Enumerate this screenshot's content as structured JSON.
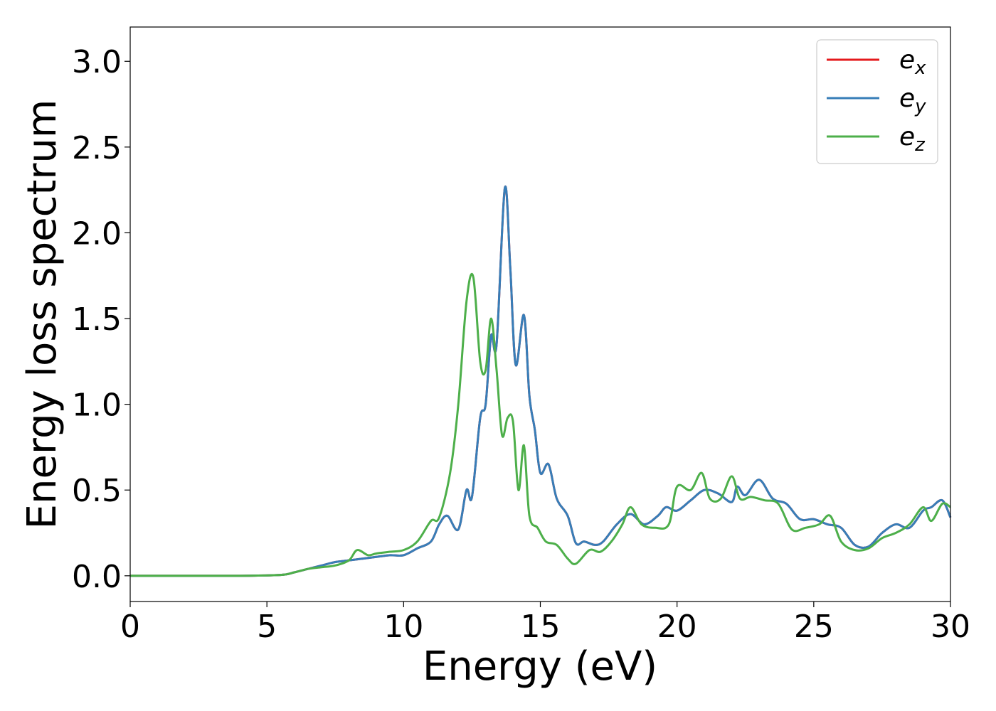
{
  "chart_data": {
    "type": "line",
    "title": "",
    "xlabel": "Energy (eV)",
    "ylabel": "Energy loss spectrum",
    "xlim": [
      0,
      30
    ],
    "ylim": [
      -0.15,
      3.2
    ],
    "xticks": [
      0,
      5,
      10,
      15,
      20,
      25,
      30
    ],
    "xtick_labels": [
      "0",
      "5",
      "10",
      "15",
      "20",
      "25",
      "30"
    ],
    "yticks": [
      0.0,
      0.5,
      1.0,
      1.5,
      2.0,
      2.5,
      3.0
    ],
    "ytick_labels": [
      "0.0",
      "0.5",
      "1.0",
      "1.5",
      "2.0",
      "2.5",
      "3.0"
    ],
    "grid": false,
    "legend_position": "top-right",
    "legend": [
      {
        "base": "e",
        "sub": "x",
        "color": "#e41a1c"
      },
      {
        "base": "e",
        "sub": "y",
        "color": "#377eb8"
      },
      {
        "base": "e",
        "sub": "z",
        "color": "#4daf4a"
      }
    ],
    "series": [
      {
        "name": "e_x",
        "color": "#e41a1c",
        "x": [
          0,
          2,
          4,
          5.5,
          6,
          6.5,
          7,
          7.5,
          8,
          8.5,
          9,
          9.5,
          10,
          10.5,
          11,
          11.3,
          11.6,
          12,
          12.3,
          12.5,
          12.8,
          13.0,
          13.2,
          13.4,
          13.7,
          13.9,
          14.1,
          14.4,
          14.6,
          14.8,
          15.0,
          15.3,
          15.6,
          16.0,
          16.3,
          16.6,
          17.0,
          17.3,
          17.8,
          18.3,
          18.8,
          19.3,
          19.6,
          20.0,
          20.5,
          21.0,
          21.5,
          22.0,
          22.2,
          22.5,
          23.0,
          23.5,
          24.0,
          24.5,
          25.0,
          25.5,
          26.0,
          26.5,
          27.0,
          27.5,
          28.0,
          28.5,
          29.0,
          29.3,
          29.7,
          30.0
        ],
        "values": [
          0.0,
          0.0,
          0.0,
          0.005,
          0.02,
          0.04,
          0.06,
          0.08,
          0.09,
          0.1,
          0.11,
          0.12,
          0.12,
          0.16,
          0.2,
          0.3,
          0.35,
          0.27,
          0.5,
          0.46,
          0.92,
          1.0,
          1.4,
          1.35,
          2.26,
          1.8,
          1.23,
          1.52,
          1.05,
          0.85,
          0.6,
          0.65,
          0.45,
          0.35,
          0.19,
          0.2,
          0.18,
          0.2,
          0.3,
          0.36,
          0.3,
          0.35,
          0.4,
          0.38,
          0.44,
          0.5,
          0.48,
          0.43,
          0.52,
          0.47,
          0.56,
          0.45,
          0.42,
          0.33,
          0.33,
          0.3,
          0.28,
          0.18,
          0.17,
          0.25,
          0.3,
          0.28,
          0.38,
          0.4,
          0.44,
          0.34
        ]
      },
      {
        "name": "e_y",
        "color": "#377eb8",
        "x": [
          0,
          2,
          4,
          5.5,
          6,
          6.5,
          7,
          7.5,
          8,
          8.5,
          9,
          9.5,
          10,
          10.5,
          11,
          11.3,
          11.6,
          12,
          12.3,
          12.5,
          12.8,
          13.0,
          13.2,
          13.4,
          13.7,
          13.9,
          14.1,
          14.4,
          14.6,
          14.8,
          15.0,
          15.3,
          15.6,
          16.0,
          16.3,
          16.6,
          17.0,
          17.3,
          17.8,
          18.3,
          18.8,
          19.3,
          19.6,
          20.0,
          20.5,
          21.0,
          21.5,
          22.0,
          22.2,
          22.5,
          23.0,
          23.5,
          24.0,
          24.5,
          25.0,
          25.5,
          26.0,
          26.5,
          27.0,
          27.5,
          28.0,
          28.5,
          29.0,
          29.3,
          29.7,
          30.0
        ],
        "values": [
          0.0,
          0.0,
          0.0,
          0.005,
          0.02,
          0.04,
          0.06,
          0.08,
          0.09,
          0.1,
          0.11,
          0.12,
          0.12,
          0.16,
          0.2,
          0.3,
          0.35,
          0.27,
          0.5,
          0.46,
          0.92,
          1.0,
          1.4,
          1.35,
          2.26,
          1.8,
          1.23,
          1.52,
          1.05,
          0.85,
          0.6,
          0.65,
          0.45,
          0.35,
          0.19,
          0.2,
          0.18,
          0.2,
          0.3,
          0.36,
          0.3,
          0.35,
          0.4,
          0.38,
          0.44,
          0.5,
          0.48,
          0.43,
          0.52,
          0.47,
          0.56,
          0.45,
          0.42,
          0.33,
          0.33,
          0.3,
          0.28,
          0.18,
          0.17,
          0.25,
          0.3,
          0.28,
          0.38,
          0.4,
          0.44,
          0.34
        ]
      },
      {
        "name": "e_z",
        "color": "#4daf4a",
        "x": [
          0,
          2,
          4,
          5.5,
          6,
          6.5,
          7,
          7.5,
          8,
          8.3,
          8.7,
          9,
          9.5,
          10,
          10.5,
          11,
          11.3,
          11.7,
          12.0,
          12.3,
          12.55,
          12.8,
          13.0,
          13.2,
          13.4,
          13.6,
          13.8,
          14.0,
          14.2,
          14.4,
          14.6,
          14.9,
          15.2,
          15.6,
          16.0,
          16.3,
          16.8,
          17.2,
          17.6,
          18.0,
          18.3,
          18.7,
          19.2,
          19.7,
          20.0,
          20.5,
          20.9,
          21.2,
          21.6,
          22.0,
          22.3,
          22.7,
          23.2,
          23.7,
          24.2,
          24.7,
          25.2,
          25.6,
          26.0,
          26.5,
          27.0,
          27.5,
          28.0,
          28.5,
          29.0,
          29.3,
          29.7,
          30.0
        ],
        "values": [
          0.0,
          0.0,
          0.0,
          0.005,
          0.02,
          0.04,
          0.05,
          0.06,
          0.09,
          0.15,
          0.12,
          0.13,
          0.14,
          0.15,
          0.2,
          0.32,
          0.34,
          0.6,
          1.0,
          1.6,
          1.74,
          1.25,
          1.2,
          1.5,
          1.2,
          0.82,
          0.92,
          0.9,
          0.5,
          0.76,
          0.35,
          0.28,
          0.2,
          0.18,
          0.1,
          0.07,
          0.15,
          0.14,
          0.2,
          0.3,
          0.4,
          0.3,
          0.28,
          0.3,
          0.52,
          0.5,
          0.6,
          0.45,
          0.45,
          0.58,
          0.45,
          0.46,
          0.44,
          0.42,
          0.27,
          0.28,
          0.3,
          0.35,
          0.2,
          0.15,
          0.16,
          0.22,
          0.25,
          0.3,
          0.4,
          0.32,
          0.42,
          0.4
        ]
      }
    ]
  }
}
